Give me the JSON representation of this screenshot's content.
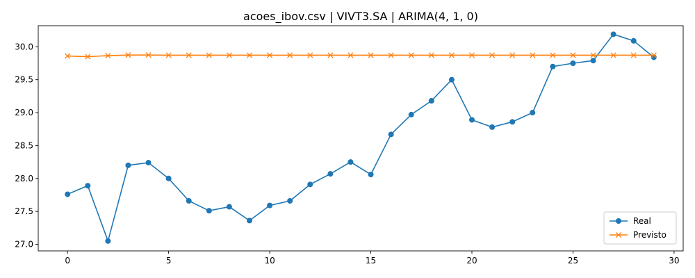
{
  "chart_data": {
    "type": "line",
    "title": "acoes_ibov.csv | VIVT3.SA | ARIMA(4, 1, 0)",
    "xlabel": "",
    "ylabel": "",
    "xlim": [
      -1.45,
      30.45
    ],
    "ylim": [
      26.9,
      30.32
    ],
    "x_ticks": [
      0,
      5,
      10,
      15,
      20,
      25,
      30
    ],
    "y_ticks": [
      27.0,
      27.5,
      28.0,
      28.5,
      29.0,
      29.5,
      30.0
    ],
    "grid": false,
    "legend_position": "lower-right",
    "x": [
      0,
      1,
      2,
      3,
      4,
      5,
      6,
      7,
      8,
      9,
      10,
      11,
      12,
      13,
      14,
      15,
      16,
      17,
      18,
      19,
      20,
      21,
      22,
      23,
      24,
      25,
      26,
      27,
      28,
      29
    ],
    "series": [
      {
        "name": "Real",
        "color": "#1f77b4",
        "marker": "circle",
        "values": [
          27.76,
          27.89,
          27.05,
          28.2,
          28.24,
          28.0,
          27.66,
          27.51,
          27.57,
          27.36,
          27.59,
          27.66,
          27.91,
          28.07,
          28.25,
          28.06,
          28.67,
          28.97,
          29.18,
          29.5,
          28.89,
          28.78,
          28.86,
          29.0,
          29.7,
          29.75,
          29.79,
          30.19,
          30.09,
          29.84
        ]
      },
      {
        "name": "Previsto",
        "color": "#ff7f0e",
        "marker": "x",
        "values": [
          29.86,
          29.85,
          29.865,
          29.875,
          29.875,
          29.872,
          29.872,
          29.872,
          29.872,
          29.872,
          29.872,
          29.872,
          29.872,
          29.872,
          29.872,
          29.872,
          29.872,
          29.872,
          29.872,
          29.872,
          29.872,
          29.872,
          29.872,
          29.872,
          29.872,
          29.872,
          29.872,
          29.872,
          29.872,
          29.872
        ]
      }
    ]
  }
}
